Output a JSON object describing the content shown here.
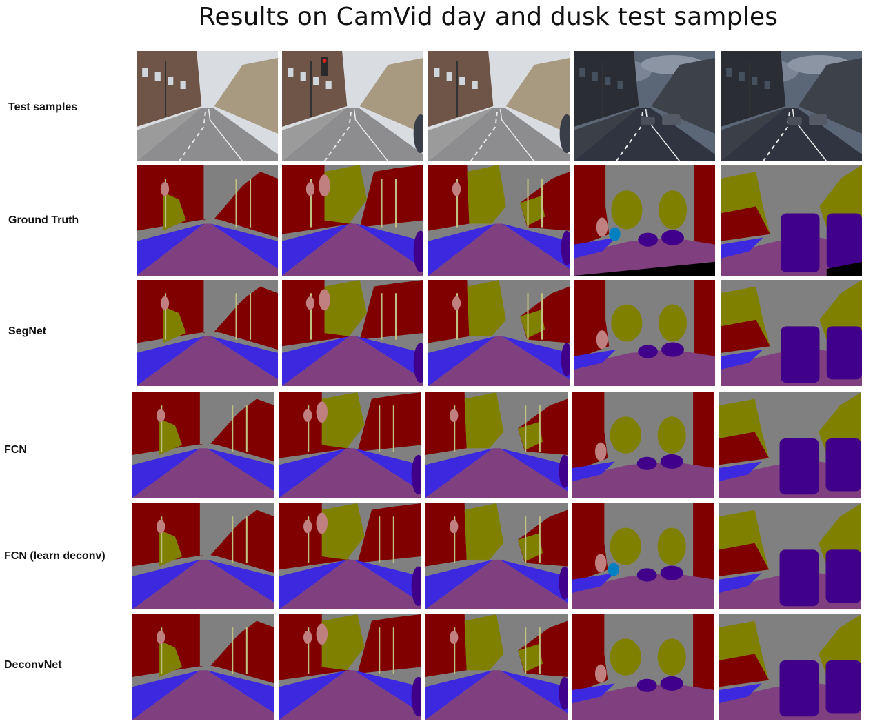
{
  "figure": {
    "title": "Results on CamVid day and dusk test samples",
    "rows": [
      {
        "label": "Test samples"
      },
      {
        "label": "Ground Truth"
      },
      {
        "label": "SegNet"
      },
      {
        "label": "FCN"
      },
      {
        "label": "FCN (learn deconv)"
      },
      {
        "label": "DeconvNet"
      }
    ],
    "class_colors": {
      "sky": "#808080",
      "building": "#800000",
      "tree": "#808000",
      "road": "#804080",
      "sidewalk": "#3c28de",
      "car": "#40008a",
      "pole": "#c0c080",
      "sign": "#c08080",
      "fence": "#404080",
      "pedestrian": "#404000",
      "bicyclist": "#0080c0",
      "unlabeled": "#000000"
    }
  }
}
